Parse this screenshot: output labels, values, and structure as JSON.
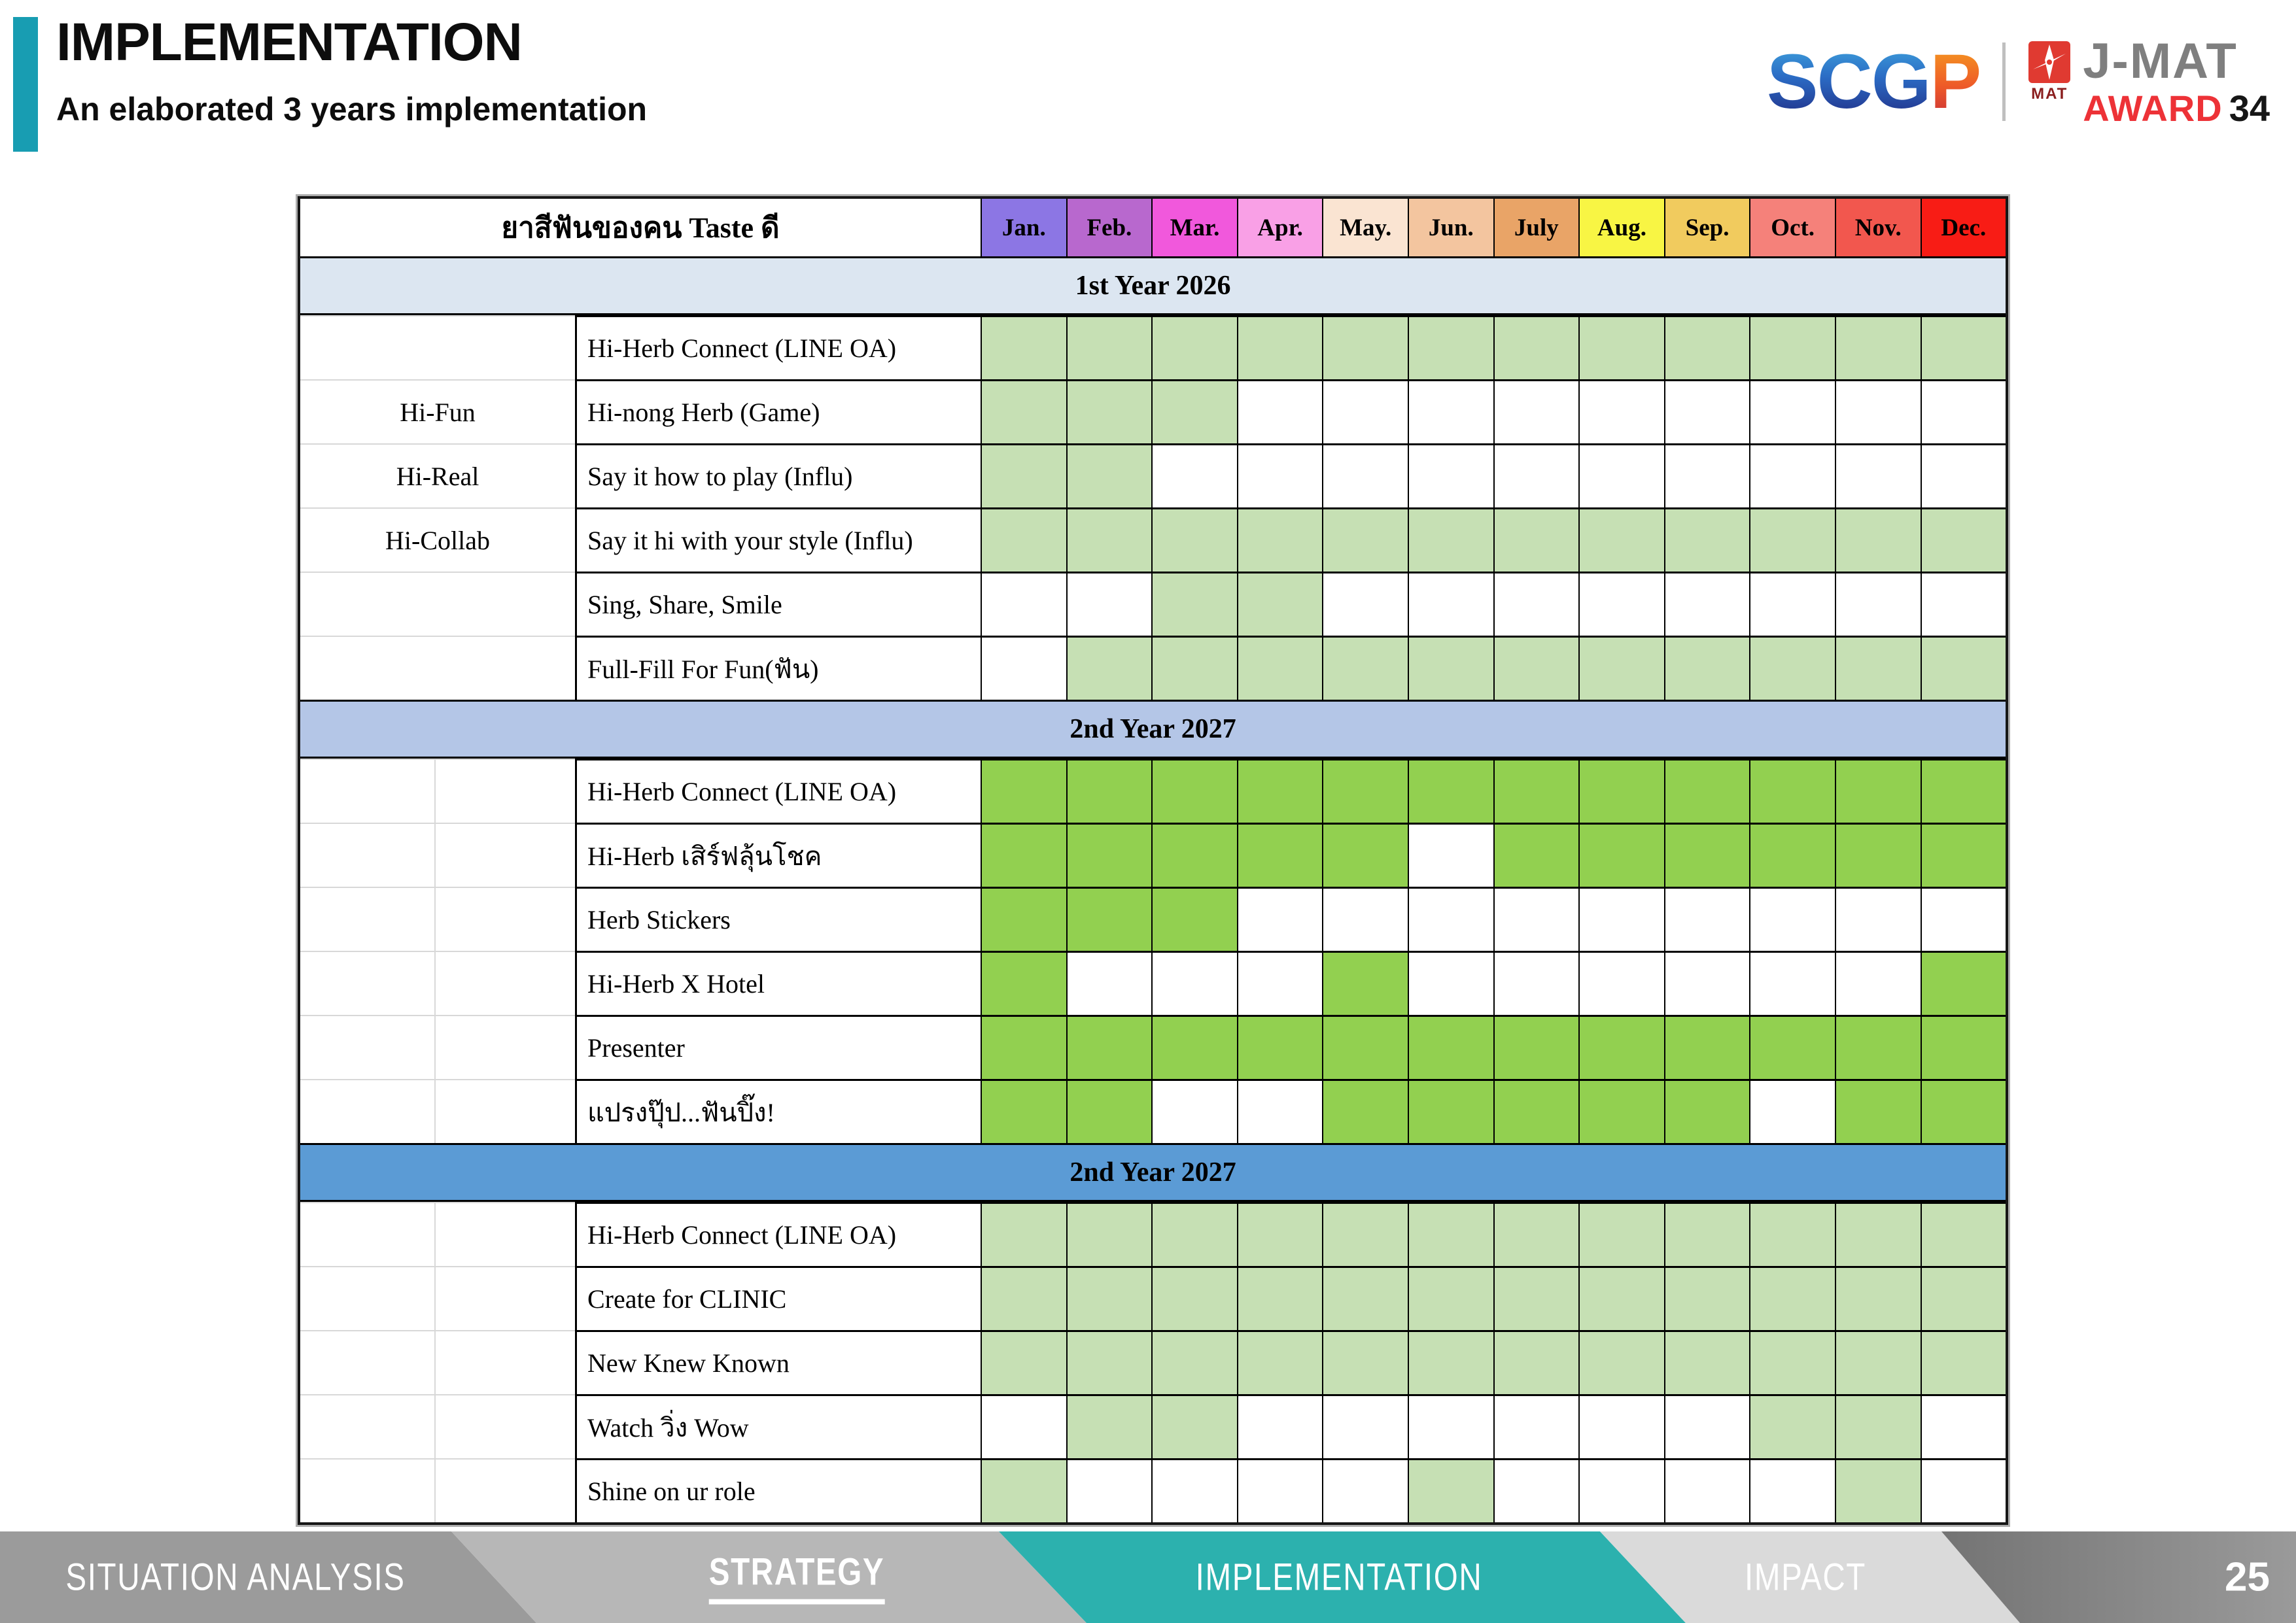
{
  "header": {
    "title": "IMPLEMENTATION",
    "subtitle": "An elaborated 3 years implementation",
    "accent_color": "#189DB2"
  },
  "logos": {
    "scgp_part1": "SCG",
    "scgp_part2": "P",
    "mat_caption": "MAT",
    "jmat_title": "J-MAT",
    "jmat_award": "AWARD",
    "jmat_number": "34"
  },
  "table": {
    "corner_label": "ยาสีฟันของคน Taste ดี",
    "months": [
      {
        "label": "Jan.",
        "color": "#8C76E4"
      },
      {
        "label": "Feb.",
        "color": "#B868CE"
      },
      {
        "label": "Mar.",
        "color": "#F158DC"
      },
      {
        "label": "Apr.",
        "color": "#F9A0E6"
      },
      {
        "label": "May.",
        "color": "#FAE4D2"
      },
      {
        "label": "Jun.",
        "color": "#F3C59F"
      },
      {
        "label": "July",
        "color": "#E9A467"
      },
      {
        "label": "Aug.",
        "color": "#F8F544"
      },
      {
        "label": "Sep.",
        "color": "#F1CB5E"
      },
      {
        "label": "Oct.",
        "color": "#F5817A"
      },
      {
        "label": "Nov.",
        "color": "#F2574E"
      },
      {
        "label": "Dec.",
        "color": "#F81C15"
      }
    ],
    "sections": [
      {
        "band_label": "1st Year  2026",
        "band_color": "#DCE6F1",
        "fill_color": "#C6E0B4",
        "label_cols": 1,
        "rows": [
          {
            "group": "",
            "activity": "Hi-Herb Connect (LINE OA)",
            "months": [
              1,
              1,
              1,
              1,
              1,
              1,
              1,
              1,
              1,
              1,
              1,
              1
            ]
          },
          {
            "group": "Hi-Fun",
            "activity": "Hi-nong Herb (Game)",
            "months": [
              1,
              1,
              1,
              0,
              0,
              0,
              0,
              0,
              0,
              0,
              0,
              0
            ]
          },
          {
            "group": "Hi-Real",
            "activity": "Say it how to play (Influ)",
            "months": [
              1,
              1,
              0,
              0,
              0,
              0,
              0,
              0,
              0,
              0,
              0,
              0
            ]
          },
          {
            "group": "Hi-Collab",
            "activity": "Say it hi with your style (Influ)",
            "months": [
              1,
              1,
              1,
              1,
              1,
              1,
              1,
              1,
              1,
              1,
              1,
              1
            ]
          },
          {
            "group": "",
            "activity": "Sing, Share, Smile",
            "months": [
              0,
              0,
              1,
              1,
              0,
              0,
              0,
              0,
              0,
              0,
              0,
              0
            ]
          },
          {
            "group": "",
            "activity": "Full-Fill For Fun(ฟัน)",
            "months": [
              0,
              1,
              1,
              1,
              1,
              1,
              1,
              1,
              1,
              1,
              1,
              1
            ]
          }
        ]
      },
      {
        "band_label": "2nd Year  2027",
        "band_color": "#B4C6E7",
        "fill_color": "#92D050",
        "label_cols": 2,
        "rows": [
          {
            "group": "",
            "activity": "Hi-Herb Connect (LINE OA)",
            "months": [
              1,
              1,
              1,
              1,
              1,
              1,
              1,
              1,
              1,
              1,
              1,
              1
            ]
          },
          {
            "group": "",
            "activity": "Hi-Herb เสิร์ฟลุ้นโชค",
            "months": [
              1,
              1,
              1,
              1,
              1,
              0,
              1,
              1,
              1,
              1,
              1,
              1
            ]
          },
          {
            "group": "",
            "activity": "Herb Stickers",
            "months": [
              1,
              1,
              1,
              0,
              0,
              0,
              0,
              0,
              0,
              0,
              0,
              0
            ]
          },
          {
            "group": "",
            "activity": "Hi-Herb X Hotel",
            "months": [
              1,
              0,
              0,
              0,
              1,
              0,
              0,
              0,
              0,
              0,
              0,
              1
            ]
          },
          {
            "group": "",
            "activity": "Presenter",
            "months": [
              1,
              1,
              1,
              1,
              1,
              1,
              1,
              1,
              1,
              1,
              1,
              1
            ]
          },
          {
            "group": "",
            "activity": "แปรงปุ๊ป...ฟันปิ๊ง!",
            "months": [
              1,
              1,
              0,
              0,
              1,
              1,
              1,
              1,
              1,
              0,
              1,
              1
            ]
          }
        ]
      },
      {
        "band_label": "2nd Year  2027",
        "band_color": "#5B9BD5",
        "fill_color": "#C6E0B4",
        "label_cols": 2,
        "rows": [
          {
            "group": "",
            "activity": "Hi-Herb Connect (LINE OA)",
            "months": [
              1,
              1,
              1,
              1,
              1,
              1,
              1,
              1,
              1,
              1,
              1,
              1
            ]
          },
          {
            "group": "",
            "activity": "Create for CLINIC",
            "months": [
              1,
              1,
              1,
              1,
              1,
              1,
              1,
              1,
              1,
              1,
              1,
              1
            ]
          },
          {
            "group": "",
            "activity": "New Knew Known",
            "months": [
              1,
              1,
              1,
              1,
              1,
              1,
              1,
              1,
              1,
              1,
              1,
              1
            ]
          },
          {
            "group": "",
            "activity": "Watch วิ่ง Wow",
            "months": [
              0,
              1,
              1,
              0,
              0,
              0,
              0,
              0,
              0,
              1,
              1,
              0
            ]
          },
          {
            "group": "",
            "activity": "Shine on ur role",
            "months": [
              1,
              0,
              0,
              0,
              0,
              1,
              0,
              0,
              0,
              0,
              1,
              0
            ]
          }
        ]
      }
    ]
  },
  "footer": {
    "items": [
      {
        "label": "SITUATION ANALYSIS",
        "color": "#9B9B9B",
        "active": false
      },
      {
        "label": "STRATEGY",
        "color": "#B7B7B7",
        "active": true
      },
      {
        "label": "IMPLEMENTATION",
        "color": "#2CB1AE",
        "active": false
      },
      {
        "label": "IMPACT",
        "color": "#DADADA",
        "active": false
      }
    ],
    "page_number": "25"
  }
}
